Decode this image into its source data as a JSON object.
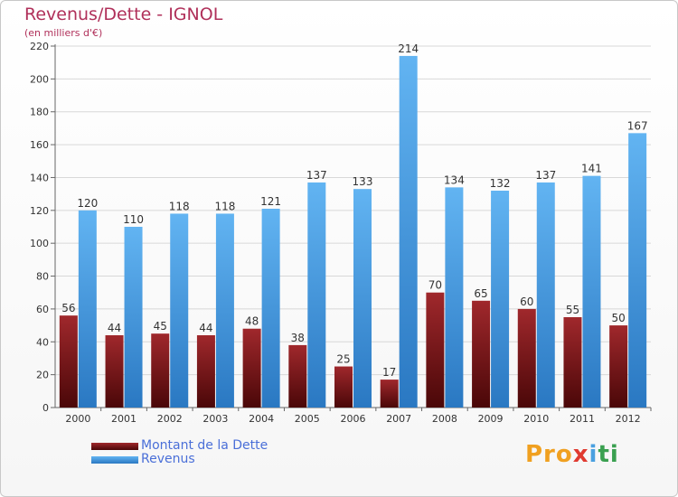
{
  "header": {
    "title": "Revenus/Dette - IGNOL",
    "subtitle": "(en milliers d'€)"
  },
  "legend": {
    "items": [
      {
        "label": "Montant de la Dette",
        "color": "#7a1518"
      },
      {
        "label": "Revenus",
        "color": "#4aa3e6"
      }
    ]
  },
  "logo": {
    "parts": [
      "Pro",
      "x",
      "i",
      "ti"
    ]
  },
  "chart_data": {
    "type": "bar",
    "categories": [
      "2000",
      "2001",
      "2002",
      "2003",
      "2004",
      "2005",
      "2006",
      "2007",
      "2008",
      "2009",
      "2010",
      "2011",
      "2012"
    ],
    "series": [
      {
        "name": "Montant de la Dette",
        "values": [
          56,
          44,
          45,
          44,
          48,
          38,
          25,
          17,
          70,
          65,
          60,
          55,
          50
        ],
        "color": "#7a1518"
      },
      {
        "name": "Revenus",
        "values": [
          120,
          110,
          118,
          118,
          121,
          137,
          133,
          214,
          134,
          132,
          137,
          141,
          167
        ],
        "color": "#4aa3e6"
      }
    ],
    "title": "Revenus/Dette - IGNOL",
    "ylabel": "(en milliers d'€)",
    "ylim": [
      0,
      220
    ],
    "yticks": [
      0,
      20,
      40,
      60,
      80,
      100,
      120,
      140,
      160,
      180,
      200,
      220
    ],
    "grid": true,
    "legend_position": "bottom-left"
  }
}
